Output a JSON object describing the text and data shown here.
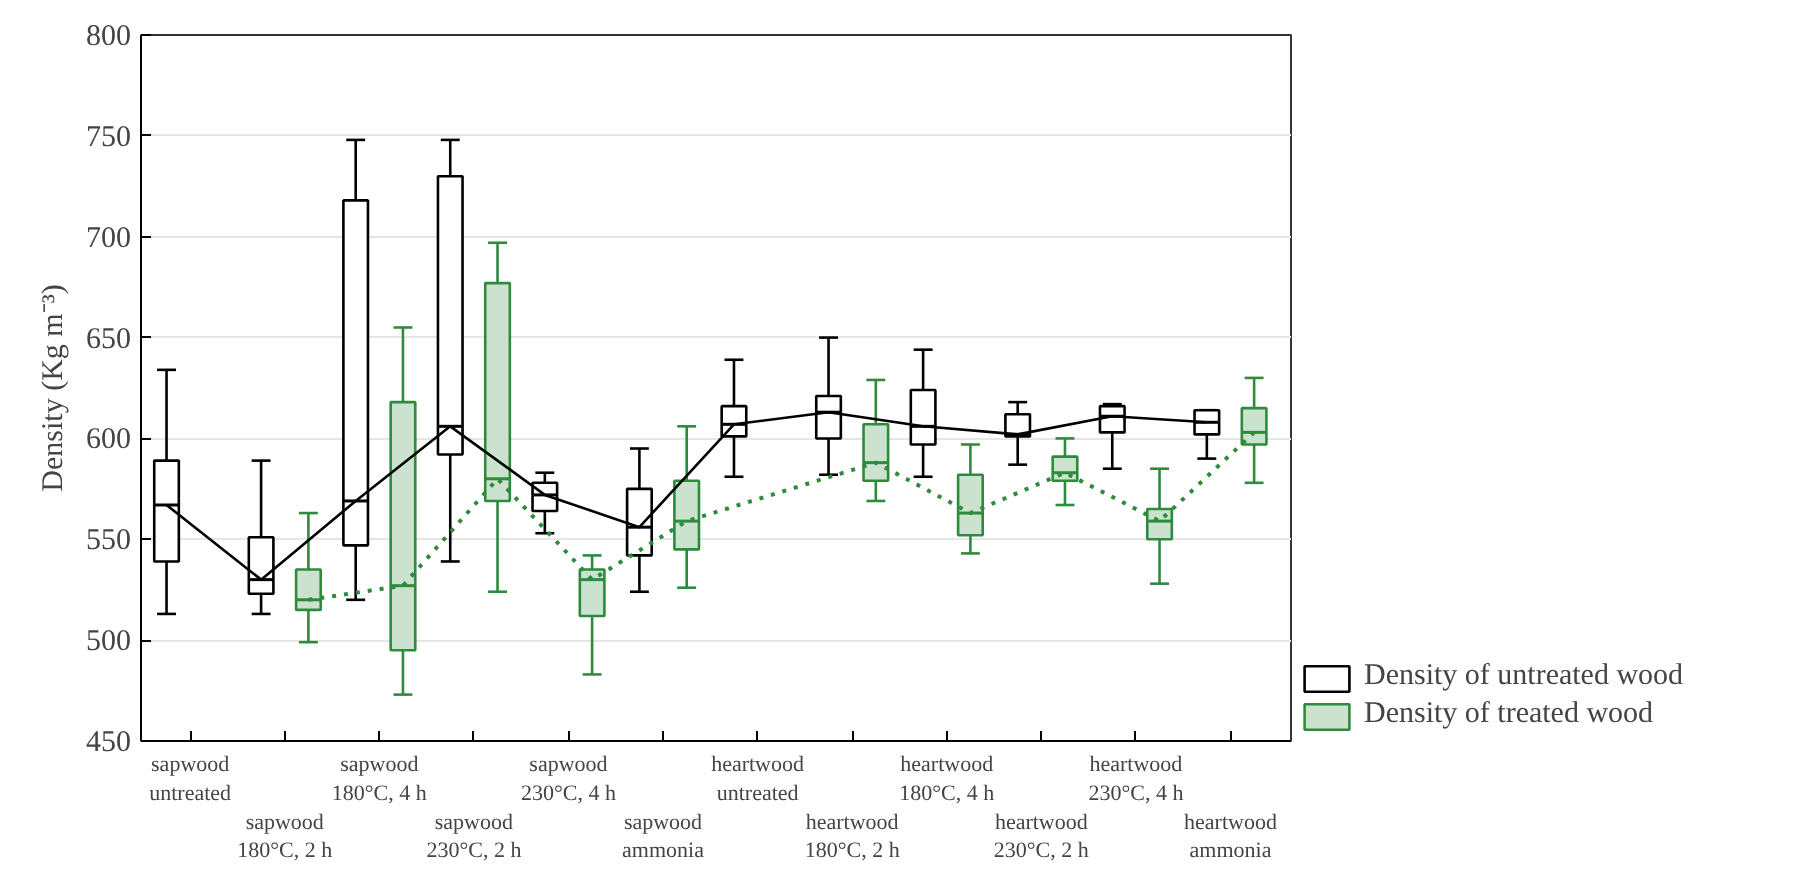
{
  "chart_data": {
    "type": "box",
    "ylabel": "Density (Kg m⁻³)",
    "categories": [
      "sapwood untreated",
      "sapwood 180°C, 2 h",
      "sapwood 180°C, 4 h",
      "sapwood 230°C, 2 h",
      "sapwood 230°C, 4 h",
      "sapwood ammonia",
      "heartwood untreated",
      "heartwood 180°C, 2 h",
      "heartwood 180°C, 4 h",
      "heartwood 230°C, 2 h",
      "heartwood 230°C, 4 h",
      "heartwood ammonia"
    ],
    "ylim": [
      450,
      800
    ],
    "yticks": [
      450,
      500,
      550,
      600,
      650,
      700,
      750,
      800
    ],
    "grid": "y",
    "legend": "right",
    "series": [
      {
        "name": "Density of untreated wood",
        "color": "#000000",
        "boxes": [
          {
            "low": 513,
            "q1": 539,
            "median": 567,
            "q3": 589,
            "high": 634
          },
          {
            "low": 513,
            "q1": 523,
            "median": 530,
            "q3": 551,
            "high": 589
          },
          {
            "low": 520,
            "q1": 547,
            "median": 569,
            "q3": 718,
            "high": 748
          },
          {
            "low": 539,
            "q1": 592,
            "median": 606,
            "q3": 730,
            "high": 748
          },
          {
            "low": 553,
            "q1": 564,
            "median": 572,
            "q3": 578,
            "high": 583
          },
          {
            "low": 524,
            "q1": 542,
            "median": 556,
            "q3": 575,
            "high": 595
          },
          {
            "low": 581,
            "q1": 601,
            "median": 607,
            "q3": 616,
            "high": 639
          },
          {
            "low": 582,
            "q1": 600,
            "median": 613,
            "q3": 621,
            "high": 650
          },
          {
            "low": 581,
            "q1": 597,
            "median": 606,
            "q3": 624,
            "high": 644
          },
          {
            "low": 587,
            "q1": 601,
            "median": 602,
            "q3": 612,
            "high": 618
          },
          {
            "low": 585,
            "q1": 603,
            "median": 611,
            "q3": 616,
            "high": 617
          },
          {
            "low": 590,
            "q1": 602,
            "median": 608,
            "q3": 614,
            "high": 614
          }
        ]
      },
      {
        "name": "Density of treated wood",
        "color": "#2e8b3e",
        "boxes": [
          null,
          {
            "low": 499,
            "q1": 515,
            "median": 520,
            "q3": 535,
            "high": 563
          },
          {
            "low": 473,
            "q1": 495,
            "median": 527,
            "q3": 618,
            "high": 655
          },
          {
            "low": 524,
            "q1": 569,
            "median": 580,
            "q3": 677,
            "high": 697
          },
          {
            "low": 483,
            "q1": 512,
            "median": 530,
            "q3": 535,
            "high": 542
          },
          {
            "low": 526,
            "q1": 545,
            "median": 559,
            "q3": 579,
            "high": 606
          },
          null,
          {
            "low": 569,
            "q1": 579,
            "median": 588,
            "q3": 607,
            "high": 629
          },
          {
            "low": 543,
            "q1": 552,
            "median": 563,
            "q3": 582,
            "high": 597
          },
          {
            "low": 567,
            "q1": 579,
            "median": 583,
            "q3": 591,
            "high": 600
          },
          {
            "low": 528,
            "q1": 550,
            "median": 559,
            "q3": 565,
            "high": 585
          },
          {
            "low": 578,
            "q1": 597,
            "median": 603,
            "q3": 615,
            "high": 630
          }
        ]
      },
      {
        "type": "line",
        "color": "#000000",
        "line_style": "solid",
        "values": [
          567,
          530,
          569,
          606,
          572,
          556,
          607,
          613,
          606,
          602,
          611,
          608
        ]
      },
      {
        "type": "line",
        "color": "#2e8b3e",
        "line_style": "dotted",
        "values": [
          null,
          520,
          527,
          580,
          530,
          559,
          null,
          588,
          563,
          583,
          559,
          603
        ]
      }
    ]
  }
}
